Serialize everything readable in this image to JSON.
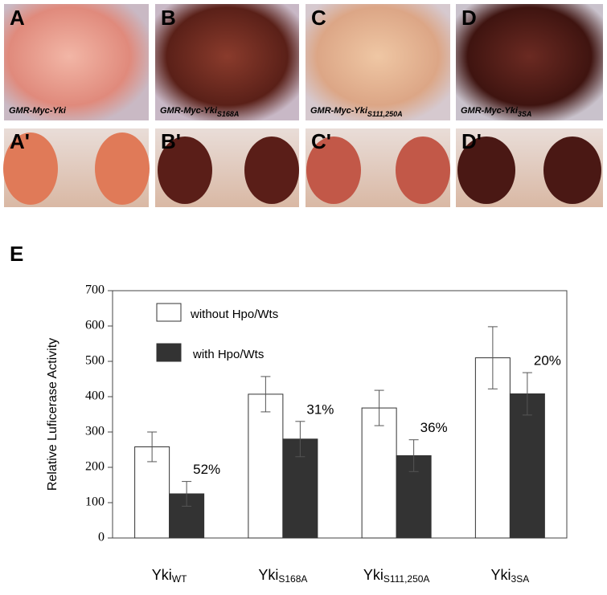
{
  "panels": [
    {
      "label": "A",
      "caption": {
        "text": "GMR-Myc-Yki"
      }
    },
    {
      "label": "B",
      "caption": {
        "text": "GMR-Myc-Yki",
        "sub": "S168A"
      }
    },
    {
      "label": "C",
      "caption": {
        "text": "GMR-Myc-Yki",
        "sub": "S111,250A"
      }
    },
    {
      "label": "D",
      "caption": {
        "text": "GMR-Myc-Yki",
        "sub": "3SA"
      }
    }
  ],
  "bottom_panels": [
    {
      "label": "A'"
    },
    {
      "label": "B'"
    },
    {
      "label": "C'"
    },
    {
      "label": "D'"
    }
  ],
  "chart_data": {
    "type": "bar",
    "panel_label": "E",
    "ylabel": "Relative Luficerase Activity",
    "categories": [
      [
        "Yki",
        "WT"
      ],
      [
        "Yki",
        "S168A"
      ],
      [
        "Yki",
        "S111,250A"
      ],
      [
        "Yki",
        "3SA"
      ]
    ],
    "series": [
      {
        "name": "without Hpo/Wts",
        "color": "#ffffff",
        "values": [
          258,
          407,
          368,
          510
        ],
        "errors": [
          42,
          50,
          50,
          88
        ]
      },
      {
        "name": "with Hpo/Wts",
        "color": "#333333",
        "values": [
          125,
          280,
          233,
          408
        ],
        "errors": [
          35,
          50,
          45,
          60
        ]
      }
    ],
    "annotations": [
      "52%",
      "31%",
      "36%",
      "20%"
    ],
    "ylim": [
      0,
      700
    ],
    "yticks": [
      0,
      100,
      200,
      300,
      400,
      500,
      600,
      700
    ],
    "grid": false
  }
}
